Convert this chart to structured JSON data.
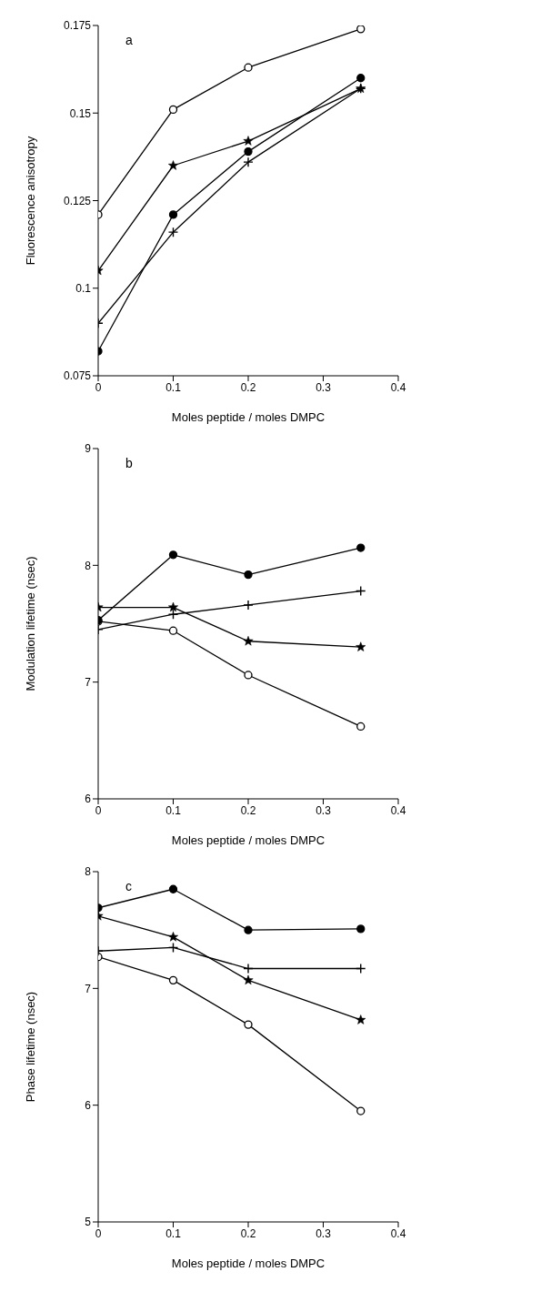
{
  "chart_data": [
    {
      "type": "line",
      "annotations": [
        "a"
      ],
      "xlabel": "Moles peptide      / moles DMPC",
      "ylabel": "Fluorescence anisotropy",
      "x": [
        0,
        0.1,
        0.2,
        0.35
      ],
      "xlim": [
        0,
        0.4
      ],
      "xticks": [
        0,
        0.1,
        0.2,
        0.3,
        0.4
      ],
      "ylim": [
        0.075,
        0.175
      ],
      "yticks": [
        0.075,
        0.1,
        0.125,
        0.15,
        0.175
      ],
      "grid": false,
      "legend": false,
      "line_style": "solid",
      "series": [
        {
          "color": "#000000",
          "marker": "circle",
          "values": [
            0.121,
            0.151,
            0.163,
            0.174
          ]
        },
        {
          "color": "#000000",
          "marker": "star",
          "values": [
            0.105,
            0.135,
            0.142,
            0.157
          ]
        },
        {
          "color": "#000000",
          "marker": "circle",
          "values": [
            0.082,
            0.121,
            0.139,
            0.16
          ]
        },
        {
          "color": "#000000",
          "marker": "cross",
          "values": [
            0.09,
            0.116,
            0.136,
            0.157
          ]
        }
      ]
    },
    {
      "type": "line",
      "annotations": [
        "b"
      ],
      "xlabel": "Moles peptide      / moles DMPC",
      "ylabel": "Modulation lifetime (nsec)",
      "x": [
        0,
        0.1,
        0.2,
        0.35
      ],
      "xlim": [
        0,
        0.4
      ],
      "xticks": [
        0,
        0.1,
        0.2,
        0.3,
        0.4
      ],
      "ylim": [
        6,
        9
      ],
      "yticks": [
        6,
        7,
        8,
        9
      ],
      "grid": false,
      "legend": false,
      "line_style": "solid",
      "series": [
        {
          "color": "#000000",
          "marker": "circle",
          "values": [
            7.52,
            7.44,
            7.06,
            6.62
          ]
        },
        {
          "color": "#000000",
          "marker": "star",
          "values": [
            7.64,
            7.64,
            7.35,
            7.3
          ]
        },
        {
          "color": "#000000",
          "marker": "circle",
          "values": [
            7.53,
            8.09,
            7.92,
            8.15
          ]
        },
        {
          "color": "#000000",
          "marker": "cross",
          "values": [
            7.45,
            7.58,
            7.66,
            7.78
          ]
        }
      ]
    },
    {
      "type": "line",
      "annotations": [
        "c"
      ],
      "xlabel": "Moles peptide      / moles DMPC",
      "ylabel": "Phase lifetime (nsec)",
      "x": [
        0,
        0.1,
        0.2,
        0.35
      ],
      "xlim": [
        0,
        0.4
      ],
      "xticks": [
        0,
        0.1,
        0.2,
        0.3,
        0.4
      ],
      "ylim": [
        5,
        8
      ],
      "yticks": [
        5,
        6,
        7,
        8
      ],
      "grid": false,
      "legend": false,
      "line_style": "solid",
      "series": [
        {
          "color": "#000000",
          "marker": "circle",
          "values": [
            7.27,
            7.07,
            6.69,
            5.95
          ]
        },
        {
          "color": "#000000",
          "marker": "star",
          "values": [
            7.62,
            7.44,
            7.07,
            6.73
          ]
        },
        {
          "color": "#000000",
          "marker": "circle",
          "values": [
            7.69,
            7.85,
            7.5,
            7.51
          ]
        },
        {
          "color": "#000000",
          "marker": "cross",
          "values": [
            7.32,
            7.35,
            7.17,
            7.17
          ]
        }
      ]
    }
  ]
}
